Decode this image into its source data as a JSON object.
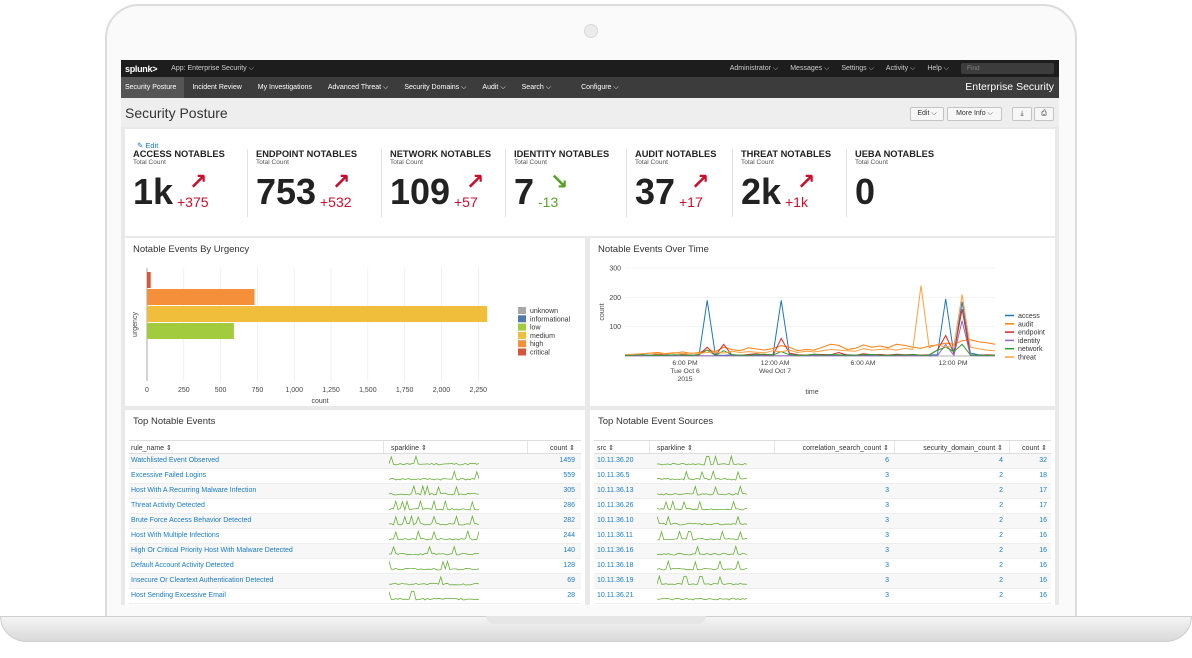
{
  "topbar": {
    "logo": "splunk>",
    "app": "App: Enterprise Security ⌵",
    "admin": "Administrator ⌵",
    "messages": "Messages ⌵",
    "settings": "Settings ⌵",
    "activity": "Activity ⌵",
    "help": "Help ⌵",
    "find_placeholder": "Find"
  },
  "nav": {
    "items": [
      "Security Posture",
      "Incident Review",
      "My Investigations",
      "Advanced Threat ⌵",
      "Security Domains ⌵",
      "Audit ⌵",
      "Search ⌵",
      "Configure ⌵"
    ],
    "brand": "Enterprise Security"
  },
  "page": {
    "title": "Security Posture",
    "edit_btn": "Edit ⌵",
    "more_btn": "More Info ⌵",
    "download_icon": "⤓",
    "print_icon": "⎙"
  },
  "kpis": {
    "edit": "Edit",
    "items": [
      {
        "name": "ACCESS NOTABLES",
        "sub": "Total Count",
        "value": "1k",
        "delta": "+375",
        "trend": "up"
      },
      {
        "name": "ENDPOINT NOTABLES",
        "sub": "Total Count",
        "value": "753",
        "delta": "+532",
        "trend": "up"
      },
      {
        "name": "NETWORK NOTABLES",
        "sub": "Total Count",
        "value": "109",
        "delta": "+57",
        "trend": "up"
      },
      {
        "name": "IDENTITY NOTABLES",
        "sub": "Total Count",
        "value": "7",
        "delta": "-13",
        "trend": "down"
      },
      {
        "name": "AUDIT NOTABLES",
        "sub": "Total Count",
        "value": "37",
        "delta": "+17",
        "trend": "up"
      },
      {
        "name": "THREAT NOTABLES",
        "sub": "Total Count",
        "value": "2k",
        "delta": "+1k",
        "trend": "up"
      },
      {
        "name": "UEBA NOTABLES",
        "sub": "Total Count",
        "value": "0",
        "delta": "",
        "trend": "none"
      }
    ]
  },
  "urgency": {
    "title": "Notable Events By Urgency",
    "chart_data": {
      "type": "bar",
      "orientation": "horizontal",
      "categories": [
        "critical",
        "high",
        "medium",
        "low",
        "informational",
        "unknown"
      ],
      "values": [
        25,
        730,
        2310,
        590,
        0,
        0
      ],
      "colors": [
        "#d6563c",
        "#f58f39",
        "#f0be3a",
        "#a2cc3e",
        "#5378ad",
        "#a8a8a8"
      ],
      "xlabel": "count",
      "ylabel": "urgency",
      "xticks": [
        "0",
        "250",
        "500",
        "750",
        "1,000",
        "1,250",
        "1,500",
        "1,750",
        "2,000",
        "2,250"
      ],
      "xlim": [
        0,
        2350
      ],
      "legend": [
        "unknown",
        "informational",
        "low",
        "medium",
        "high",
        "critical"
      ],
      "legend_colors": [
        "#a8a8a8",
        "#5378ad",
        "#a2cc3e",
        "#f0be3a",
        "#f58f39",
        "#d6563c"
      ]
    }
  },
  "overtime": {
    "title": "Notable Events Over Time",
    "chart_data": {
      "type": "line",
      "xlabel": "time",
      "ylabel": "count",
      "yticks": [
        "300",
        "200",
        "100"
      ],
      "xticks": [
        [
          "6:00 PM",
          "Tue Oct 6",
          "2015"
        ],
        [
          "12:00 AM",
          "Wed Oct 7"
        ],
        [
          "6:00 AM"
        ],
        [
          "12:00 PM"
        ]
      ],
      "ylim": [
        0,
        300
      ],
      "series": [
        {
          "name": "access",
          "color": "#1f77b4",
          "values": [
            2,
            2,
            5,
            3,
            2,
            4,
            3,
            2,
            3,
            2,
            190,
            3,
            2,
            4,
            3,
            3,
            2,
            5,
            4,
            190,
            5,
            3,
            3,
            2,
            5,
            3,
            3,
            4,
            3,
            2,
            3,
            4,
            3,
            3,
            2,
            3,
            2,
            3,
            4,
            195,
            5,
            185,
            10,
            4,
            3,
            2
          ]
        },
        {
          "name": "audit",
          "color": "#ff7f0e",
          "values": [
            3,
            5,
            8,
            10,
            12,
            8,
            10,
            14,
            9,
            12,
            20,
            15,
            30,
            22,
            18,
            28,
            24,
            20,
            26,
            35,
            30,
            18,
            22,
            20,
            30,
            40,
            36,
            22,
            26,
            38,
            30,
            34,
            28,
            40,
            36,
            30,
            26,
            34,
            38,
            44,
            40,
            52,
            56,
            48,
            45,
            40
          ]
        },
        {
          "name": "endpoint",
          "color": "#d62728",
          "values": [
            2,
            4,
            3,
            2,
            6,
            3,
            2,
            5,
            3,
            4,
            30,
            2,
            40,
            3,
            2,
            5,
            8,
            3,
            2,
            60,
            10,
            4,
            3,
            6,
            5,
            4,
            12,
            3,
            2,
            8,
            4,
            5,
            3,
            6,
            4,
            5,
            3,
            4,
            20,
            70,
            10,
            160,
            3,
            2,
            4,
            3
          ]
        },
        {
          "name": "identity",
          "color": "#9467bd",
          "values": [
            1,
            1,
            1,
            1,
            1,
            1,
            1,
            1,
            1,
            1,
            1,
            1,
            1,
            1,
            1,
            1,
            1,
            1,
            1,
            1,
            1,
            1,
            1,
            1,
            1,
            1,
            1,
            1,
            1,
            1,
            1,
            1,
            1,
            1,
            1,
            1,
            1,
            1,
            1,
            40,
            2,
            120,
            2,
            1,
            1,
            1
          ]
        },
        {
          "name": "network",
          "color": "#2ca02c",
          "values": [
            2,
            3,
            4,
            2,
            3,
            2,
            4,
            3,
            2,
            5,
            20,
            2,
            18,
            4,
            3,
            2,
            5,
            6,
            3,
            15,
            4,
            3,
            2,
            6,
            3,
            5,
            4,
            2,
            3,
            4,
            5,
            3,
            2,
            4,
            3,
            5,
            2,
            3,
            20,
            30,
            15,
            40,
            4,
            3,
            2,
            3
          ]
        },
        {
          "name": "threat",
          "color": "#ff9f3f",
          "values": [
            5,
            6,
            8,
            10,
            7,
            9,
            12,
            8,
            10,
            9,
            12,
            14,
            10,
            16,
            12,
            15,
            13,
            11,
            18,
            14,
            20,
            12,
            16,
            14,
            18,
            22,
            20,
            18,
            16,
            25,
            20,
            22,
            24,
            20,
            26,
            22,
            240,
            28,
            40,
            30,
            35,
            210,
            30,
            25,
            20,
            18
          ]
        }
      ]
    }
  },
  "top_events": {
    "title": "Top Notable Events",
    "headers": [
      "rule_name ⇕",
      "sparkline ⇕",
      "count ⇕"
    ],
    "rows": [
      [
        "Watchlisted Event Observed",
        "1459"
      ],
      [
        "Excessive Failed Logins",
        "559"
      ],
      [
        "Host With A Recurring Malware Infection",
        "305"
      ],
      [
        "Threat Activity Detected",
        "286"
      ],
      [
        "Brute Force Access Behavior Detected",
        "282"
      ],
      [
        "Host With Multiple Infections",
        "244"
      ],
      [
        "High Or Critical Priority Host With Malware Detected",
        "140"
      ],
      [
        "Default Account Activity Detected",
        "128"
      ],
      [
        "Insecure Or Cleartext Authentication Detected",
        "69"
      ],
      [
        "Host Sending Excessive Email",
        "28"
      ]
    ]
  },
  "top_sources": {
    "title": "Top Notable Event Sources",
    "headers": [
      "src ⇕",
      "sparkline ⇕",
      "correlation_search_count ⇕",
      "security_domain_count ⇕",
      "count ⇕"
    ],
    "rows": [
      [
        "10.11.36.20",
        "6",
        "4",
        "32"
      ],
      [
        "10.11.36.5",
        "3",
        "2",
        "18"
      ],
      [
        "10.11.36.13",
        "3",
        "2",
        "17"
      ],
      [
        "10.11.36.26",
        "3",
        "2",
        "17"
      ],
      [
        "10.11.36.10",
        "3",
        "2",
        "16"
      ],
      [
        "10.11.36.11",
        "3",
        "2",
        "16"
      ],
      [
        "10.11.36.16",
        "3",
        "2",
        "16"
      ],
      [
        "10.11.36.18",
        "3",
        "2",
        "16"
      ],
      [
        "10.11.36.19",
        "3",
        "2",
        "16"
      ],
      [
        "10.11.36.21",
        "3",
        "2",
        "16"
      ]
    ]
  }
}
